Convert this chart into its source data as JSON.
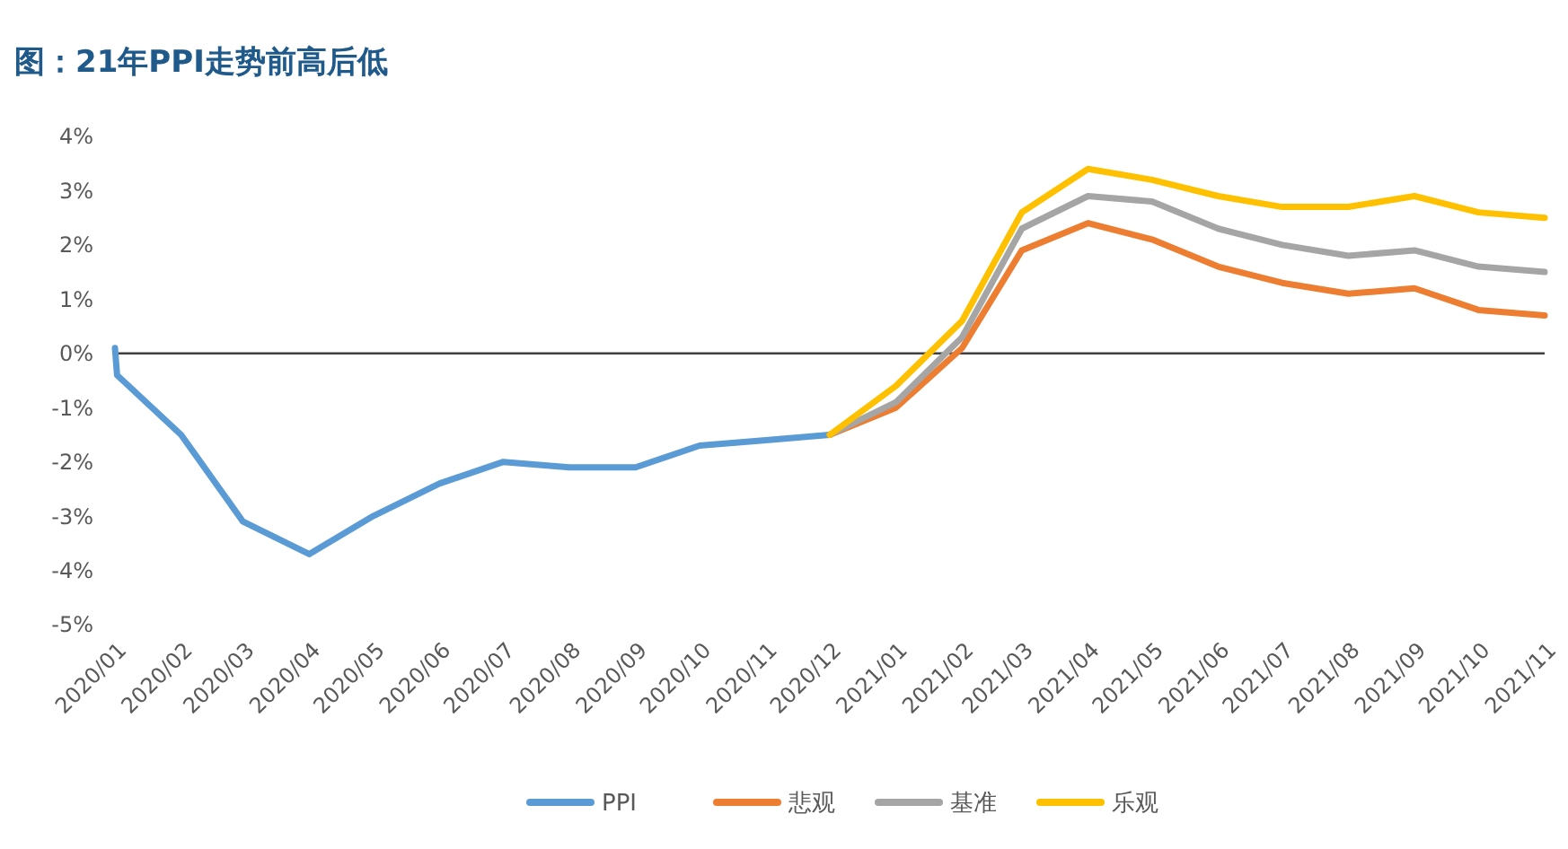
{
  "chart_data": {
    "type": "line",
    "title": "图：21年PPI走势前高后低",
    "series": [
      {
        "name": "PPI",
        "color": "#5b9bd5",
        "x": [
          "2020-01-01",
          "2020-01-02",
          "2020-02",
          "2020-03",
          "2020-04",
          "2020-05",
          "2020-06",
          "2020-07",
          "2020-08",
          "2020-09",
          "2020-10",
          "2020-11",
          "2020-12"
        ],
        "values": [
          0.1,
          -0.4,
          -1.5,
          -3.1,
          -3.7,
          -3.0,
          -2.4,
          -2.0,
          -2.1,
          -2.1,
          -1.7,
          -1.6,
          -1.5
        ]
      },
      {
        "name": "悲观",
        "color": "#ed7d31",
        "x": [
          "2020-12",
          "2021-01",
          "2021-02",
          "2021-03",
          "2021-04",
          "2021-05",
          "2021-06",
          "2021-07",
          "2021-08",
          "2021-09",
          "2021-10",
          "2021-11"
        ],
        "values": [
          -1.5,
          -1.0,
          0.1,
          1.9,
          2.4,
          2.1,
          1.6,
          1.3,
          1.1,
          1.2,
          0.8,
          0.7
        ]
      },
      {
        "name": "基准",
        "color": "#a5a5a5",
        "x": [
          "2020-12",
          "2021-01",
          "2021-02",
          "2021-03",
          "2021-04",
          "2021-05",
          "2021-06",
          "2021-07",
          "2021-08",
          "2021-09",
          "2021-10",
          "2021-11"
        ],
        "values": [
          -1.5,
          -0.9,
          0.3,
          2.3,
          2.9,
          2.8,
          2.3,
          2.0,
          1.8,
          1.9,
          1.6,
          1.5
        ]
      },
      {
        "name": "乐观",
        "color": "#ffc000",
        "x": [
          "2020-12",
          "2021-01",
          "2021-02",
          "2021-03",
          "2021-04",
          "2021-05",
          "2021-06",
          "2021-07",
          "2021-08",
          "2021-09",
          "2021-10",
          "2021-11"
        ],
        "values": [
          -1.5,
          -0.6,
          0.6,
          2.6,
          3.4,
          3.2,
          2.9,
          2.7,
          2.7,
          2.9,
          2.6,
          2.5
        ]
      }
    ],
    "xlim": [
      "2020-01",
      "2021-11"
    ],
    "xticks": [
      {
        "value": "2020-01",
        "label": "2020/01"
      },
      {
        "value": "2020-02",
        "label": "2020/02"
      },
      {
        "value": "2020-03",
        "label": "2020/03"
      },
      {
        "value": "2020-04",
        "label": "2020/04"
      },
      {
        "value": "2020-05",
        "label": "2020/05"
      },
      {
        "value": "2020-06",
        "label": "2020/06"
      },
      {
        "value": "2020-07",
        "label": "2020/07"
      },
      {
        "value": "2020-08",
        "label": "2020/08"
      },
      {
        "value": "2020-09",
        "label": "2020/09"
      },
      {
        "value": "2020-10",
        "label": "2020/10"
      },
      {
        "value": "2020-11",
        "label": "2020/11"
      },
      {
        "value": "2020-12",
        "label": "2020/12"
      },
      {
        "value": "2021-01",
        "label": "2021/01"
      },
      {
        "value": "2021-02",
        "label": "2021/02"
      },
      {
        "value": "2021-03",
        "label": "2021/03"
      },
      {
        "value": "2021-04",
        "label": "2021/04"
      },
      {
        "value": "2021-05",
        "label": "2021/05"
      },
      {
        "value": "2021-06",
        "label": "2021/06"
      },
      {
        "value": "2021-07",
        "label": "2021/07"
      },
      {
        "value": "2021-08",
        "label": "2021/08"
      },
      {
        "value": "2021-09",
        "label": "2021/09"
      },
      {
        "value": "2021-10",
        "label": "2021/10"
      },
      {
        "value": "2021-11",
        "label": "2021/11"
      }
    ],
    "ylim": [
      -5,
      4
    ],
    "yticks": [
      {
        "value": -5,
        "label": "-5%"
      },
      {
        "value": -4,
        "label": "-4%"
      },
      {
        "value": -3,
        "label": "-3%"
      },
      {
        "value": -2,
        "label": "-2%"
      },
      {
        "value": -1,
        "label": "-1%"
      },
      {
        "value": 0,
        "label": "0%"
      },
      {
        "value": 1,
        "label": "1%"
      },
      {
        "value": 2,
        "label": "2%"
      },
      {
        "value": 3,
        "label": "3%"
      },
      {
        "value": 4,
        "label": "4%"
      }
    ],
    "ref_lines": [
      {
        "axis": "y",
        "value": 0,
        "color": "#404040"
      }
    ],
    "legend": "bottom",
    "marker": "none",
    "line_style": "solid"
  }
}
